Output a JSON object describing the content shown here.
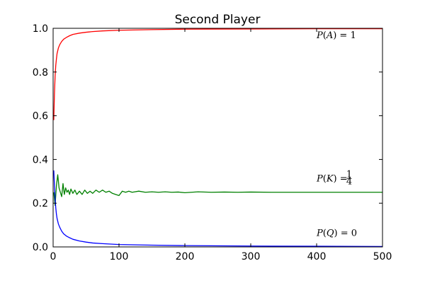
{
  "chart_data": {
    "type": "line",
    "title": "Second Player",
    "xlabel": "",
    "ylabel": "",
    "xlim": [
      0,
      500
    ],
    "ylim": [
      0.0,
      1.0
    ],
    "xticks": [
      "0",
      "100",
      "200",
      "300",
      "400",
      "500"
    ],
    "yticks": [
      "0.0",
      "0.2",
      "0.4",
      "0.6",
      "0.8",
      "1.0"
    ],
    "grid": false,
    "series": [
      {
        "color": "#ff0000",
        "x": [
          1,
          2,
          3,
          4,
          5,
          6,
          8,
          10,
          13,
          16,
          20,
          25,
          30,
          40,
          50,
          60,
          75,
          100,
          150,
          200,
          300,
          400,
          500
        ],
        "values": [
          0.58,
          0.7,
          0.78,
          0.83,
          0.86,
          0.885,
          0.91,
          0.925,
          0.94,
          0.95,
          0.958,
          0.966,
          0.972,
          0.978,
          0.982,
          0.985,
          0.988,
          0.991,
          0.994,
          0.996,
          0.997,
          0.998,
          0.998
        ]
      },
      {
        "color": "#008000",
        "x": [
          1,
          3,
          5,
          7,
          9,
          11,
          13,
          15,
          17,
          19,
          21,
          23,
          25,
          27,
          30,
          33,
          36,
          40,
          44,
          48,
          52,
          56,
          60,
          65,
          70,
          75,
          80,
          85,
          90,
          95,
          100,
          105,
          110,
          115,
          120,
          130,
          140,
          150,
          160,
          170,
          180,
          190,
          200,
          220,
          240,
          260,
          280,
          300,
          330,
          360,
          400,
          450,
          500
        ],
        "values": [
          0.25,
          0.19,
          0.28,
          0.33,
          0.27,
          0.25,
          0.23,
          0.29,
          0.24,
          0.27,
          0.25,
          0.26,
          0.24,
          0.265,
          0.245,
          0.26,
          0.24,
          0.255,
          0.24,
          0.26,
          0.245,
          0.255,
          0.245,
          0.26,
          0.25,
          0.26,
          0.25,
          0.255,
          0.245,
          0.24,
          0.235,
          0.255,
          0.25,
          0.255,
          0.25,
          0.255,
          0.25,
          0.252,
          0.25,
          0.252,
          0.25,
          0.251,
          0.248,
          0.252,
          0.25,
          0.251,
          0.25,
          0.251,
          0.25,
          0.25,
          0.25,
          0.25,
          0.25
        ]
      },
      {
        "color": "#0000ff",
        "x": [
          1,
          2,
          3,
          4,
          5,
          6,
          8,
          10,
          13,
          16,
          20,
          25,
          30,
          40,
          50,
          60,
          75,
          100,
          150,
          200,
          300,
          400,
          500
        ],
        "values": [
          0.35,
          0.28,
          0.22,
          0.18,
          0.15,
          0.13,
          0.105,
          0.09,
          0.072,
          0.06,
          0.05,
          0.042,
          0.035,
          0.027,
          0.022,
          0.018,
          0.015,
          0.011,
          0.008,
          0.006,
          0.004,
          0.003,
          0.002
        ]
      }
    ],
    "annotations": [
      {
        "name": "annot-p-a",
        "x": 400,
        "y": 0.955,
        "parts": [
          "P",
          "(",
          "A",
          ")",
          " = 1"
        ]
      },
      {
        "name": "annot-p-k",
        "x": 400,
        "y": 0.3,
        "parts": [
          "P",
          "(",
          "K",
          ")",
          " = ",
          "1",
          "4"
        ]
      },
      {
        "name": "annot-p-q",
        "x": 400,
        "y": 0.05,
        "parts": [
          "P",
          "(",
          "Q",
          ")",
          " = 0"
        ]
      }
    ]
  }
}
